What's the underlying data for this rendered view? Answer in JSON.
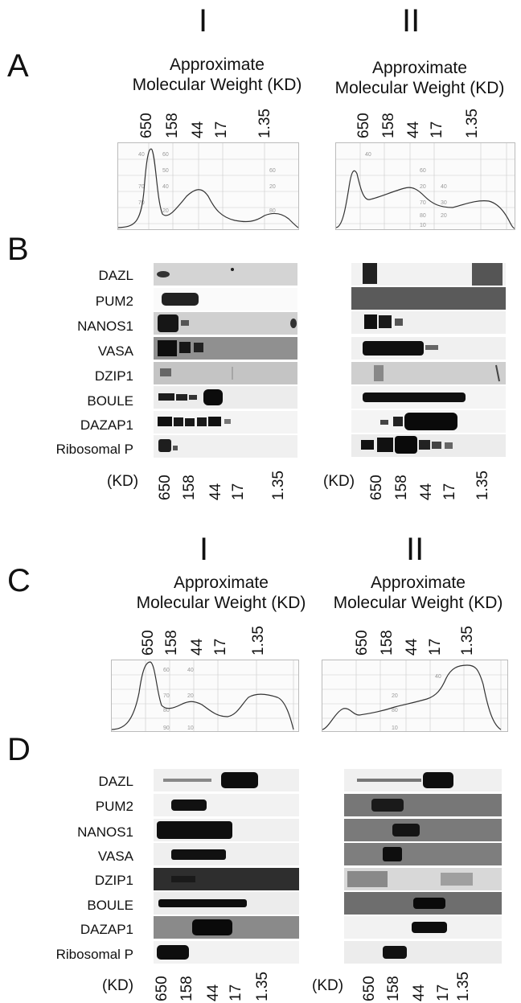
{
  "figure": {
    "panels": {
      "A": "A",
      "B": "B",
      "C": "C",
      "D": "D"
    },
    "columns": {
      "I": "I",
      "II": "II"
    },
    "mw_title_line1": "Approximate",
    "mw_title_line2": "Molecular Weight (KD)",
    "kd_label": "(KD)",
    "ticks": [
      "650",
      "158",
      "44",
      "17",
      "1.35"
    ],
    "blot_labels": [
      "DAZL",
      "PUM2",
      "NANOS1",
      "VASA",
      "DZIP1",
      "BOULE",
      "DAZAP1",
      "Ribosomal P"
    ],
    "chart_paper_axis_labels": {
      "A_I": [
        "40",
        "60",
        "50",
        "70",
        "20",
        "40",
        "70",
        "60",
        "80",
        "20"
      ],
      "A_II": [
        "40",
        "60",
        "20",
        "40",
        "70",
        "30",
        "80",
        "20",
        "10"
      ],
      "C_I": [
        "60",
        "40",
        "70",
        "20",
        "80",
        "90",
        "10"
      ],
      "C_II": [
        "40",
        "20",
        "80",
        "10"
      ]
    }
  }
}
